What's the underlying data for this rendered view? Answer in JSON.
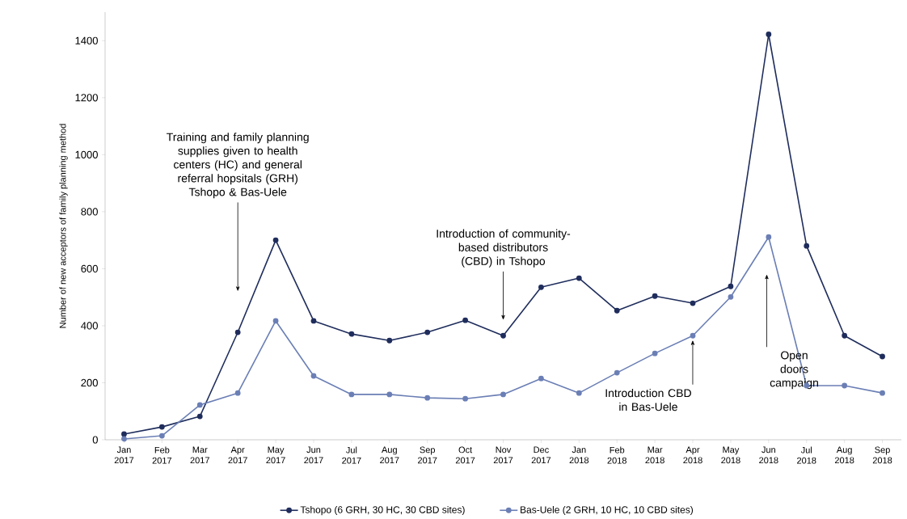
{
  "chart_data": {
    "type": "line",
    "ylabel": "Number of new acceptors of family planning method",
    "categories": [
      "Jan 2017",
      "Feb 2017",
      "Mar 2017",
      "Apr 2017",
      "May 2017",
      "Jun 2017",
      "Jul 2017",
      "Aug 2017",
      "Sep 2017",
      "Oct 2017",
      "Nov 2017",
      "Dec 2017",
      "Jan 2018",
      "Feb 2018",
      "Mar 2018",
      "Apr 2018",
      "May 2018",
      "Jun 2018",
      "Jul 2018",
      "Aug 2018",
      "Sep 2018"
    ],
    "series": [
      {
        "name": "Tshopo (6 GRH, 30 HC, 30 CBD sites)",
        "color": "#1f2d5c",
        "values": [
          20,
          45,
          82,
          377,
          700,
          417,
          371,
          348,
          377,
          419,
          365,
          535,
          567,
          453,
          504,
          479,
          538,
          1422,
          680,
          365,
          292
        ]
      },
      {
        "name": "Bas-Uele (2 GRH, 10 HC, 10 CBD sites)",
        "color": "#6b7fb5",
        "values": [
          3,
          14,
          122,
          164,
          417,
          224,
          159,
          159,
          147,
          144,
          159,
          215,
          164,
          235,
          303,
          365,
          501,
          711,
          190,
          190,
          164
        ]
      }
    ],
    "ylim": [
      0,
      1500
    ],
    "yticks": [
      0,
      200,
      400,
      600,
      800,
      1000,
      1200,
      1400
    ],
    "grid": false,
    "legend": "bottom",
    "marker": "circle",
    "line_style": "solid",
    "annotations": [
      "Training and family planning supplies given to health centers (HC) and general referral hopsitals (GRH) Tshopo & Bas-Uele",
      "Introduction of community-based distributors (CBD) in Tshopo",
      "Introduction CBD in Bas-Uele",
      "Open doors campaign"
    ]
  }
}
